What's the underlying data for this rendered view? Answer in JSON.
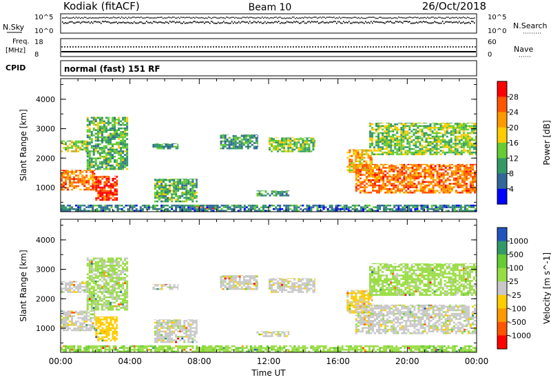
{
  "header": {
    "site": "Kodiak (fitACF)",
    "beam": "Beam 10",
    "date": "26/Oct/2018"
  },
  "strip_labels": {
    "nsky": "N.Sky",
    "nsky_hi": "10^5",
    "nsky_lo": "10^0",
    "nsearch": "N.Search",
    "nsearch_hi": "10^5",
    "nsearch_lo": "10^0",
    "freq_line1": "Freq.",
    "freq_line2": "[MHz]",
    "freq_hi": "18",
    "freq_lo": "8",
    "nave": "Nave",
    "nave_hi": "60",
    "nave_lo": "0",
    "cpid": "CPID",
    "mode": "normal (fast) 151 RF"
  },
  "chart_data": [
    {
      "type": "heatmap",
      "title": "",
      "xlabel": "Time UT",
      "ylabel": "Slant Range [km]",
      "x_ticks": [
        "00:00",
        "04:00",
        "08:00",
        "12:00",
        "16:00",
        "20:00",
        "00:00"
      ],
      "y_ticks": [
        "1000",
        "2000",
        "3000",
        "4000"
      ],
      "ylim": [
        180,
        4700
      ],
      "colorbar_label": "Power [dB]",
      "colorbar_ticks": [
        "28",
        "24",
        "20",
        "16",
        "12",
        "8",
        "4"
      ],
      "colorbar_colors": [
        "#ff0000",
        "#ff5500",
        "#ff9900",
        "#ffcc00",
        "#66cc33",
        "#339966",
        "#336699",
        "#0000ff"
      ],
      "regions": [
        {
          "t0": 0.0,
          "t1": 2.0,
          "r0": 900,
          "r1": 1600,
          "value": 24
        },
        {
          "t0": 2.0,
          "t1": 3.3,
          "r0": 550,
          "r1": 1400,
          "value": 28
        },
        {
          "t0": 0.0,
          "t1": 1.6,
          "r0": 2200,
          "r1": 2600,
          "value": 16
        },
        {
          "t0": 1.5,
          "t1": 3.9,
          "r0": 1600,
          "r1": 3400,
          "value": 12
        },
        {
          "t0": 5.3,
          "t1": 6.8,
          "r0": 2300,
          "r1": 2500,
          "value": 10
        },
        {
          "t0": 5.4,
          "t1": 7.9,
          "r0": 500,
          "r1": 1300,
          "value": 12
        },
        {
          "t0": 7.8,
          "t1": 9.0,
          "r0": 200,
          "r1": 380,
          "value": 28
        },
        {
          "t0": 9.2,
          "t1": 11.4,
          "r0": 2300,
          "r1": 2800,
          "value": 10
        },
        {
          "t0": 11.3,
          "t1": 13.2,
          "r0": 700,
          "r1": 900,
          "value": 10
        },
        {
          "t0": 12.0,
          "t1": 14.7,
          "r0": 2200,
          "r1": 2700,
          "value": 14
        },
        {
          "t0": 16.5,
          "t1": 18.0,
          "r0": 1500,
          "r1": 2300,
          "value": 20
        },
        {
          "t0": 17.0,
          "t1": 24.0,
          "r0": 800,
          "r1": 1800,
          "value": 24
        },
        {
          "t0": 17.8,
          "t1": 24.0,
          "r0": 2100,
          "r1": 3200,
          "value": 14
        },
        {
          "t0": 0.0,
          "t1": 24.0,
          "r0": 180,
          "r1": 420,
          "value": 8
        }
      ]
    },
    {
      "type": "heatmap",
      "title": "",
      "xlabel": "Time UT",
      "ylabel": "Slant Range [km]",
      "x_ticks": [
        "00:00",
        "04:00",
        "08:00",
        "12:00",
        "16:00",
        "20:00",
        "00:00"
      ],
      "y_ticks": [
        "1000",
        "2000",
        "3000",
        "4000"
      ],
      "ylim": [
        180,
        4700
      ],
      "colorbar_label": "Velocity [m s^-1]",
      "colorbar_ticks": [
        "1000",
        "500",
        "100",
        "25",
        "-25",
        "-100",
        "-500",
        "-1000"
      ],
      "colorbar_colors": [
        "#2255bb",
        "#339966",
        "#66cc33",
        "#99dd44",
        "#c8c8c8",
        "#ffcc00",
        "#ff9900",
        "#ff5500",
        "#ff0000"
      ],
      "regions": [
        {
          "t0": 0.0,
          "t1": 2.0,
          "r0": 900,
          "r1": 1600,
          "value": 0
        },
        {
          "t0": 2.0,
          "t1": 3.3,
          "r0": 550,
          "r1": 1400,
          "value": -60
        },
        {
          "t0": 0.0,
          "t1": 1.6,
          "r0": 2200,
          "r1": 2600,
          "value": 0
        },
        {
          "t0": 1.5,
          "t1": 3.9,
          "r0": 1600,
          "r1": 3400,
          "value": 40
        },
        {
          "t0": 5.3,
          "t1": 6.8,
          "r0": 2300,
          "r1": 2500,
          "value": 0
        },
        {
          "t0": 5.4,
          "t1": 7.9,
          "r0": 500,
          "r1": 1300,
          "value": 0
        },
        {
          "t0": 7.8,
          "t1": 9.0,
          "r0": 200,
          "r1": 380,
          "value": 60
        },
        {
          "t0": 9.2,
          "t1": 11.4,
          "r0": 2300,
          "r1": 2800,
          "value": 0
        },
        {
          "t0": 11.3,
          "t1": 13.2,
          "r0": 700,
          "r1": 900,
          "value": 0
        },
        {
          "t0": 12.0,
          "t1": 14.7,
          "r0": 2200,
          "r1": 2700,
          "value": 0
        },
        {
          "t0": 16.5,
          "t1": 18.0,
          "r0": 1500,
          "r1": 2300,
          "value": -40
        },
        {
          "t0": 17.0,
          "t1": 24.0,
          "r0": 800,
          "r1": 1800,
          "value": 0
        },
        {
          "t0": 17.8,
          "t1": 24.0,
          "r0": 2100,
          "r1": 3200,
          "value": 50
        },
        {
          "t0": 0.0,
          "t1": 24.0,
          "r0": 180,
          "r1": 420,
          "value": 80
        }
      ]
    }
  ]
}
